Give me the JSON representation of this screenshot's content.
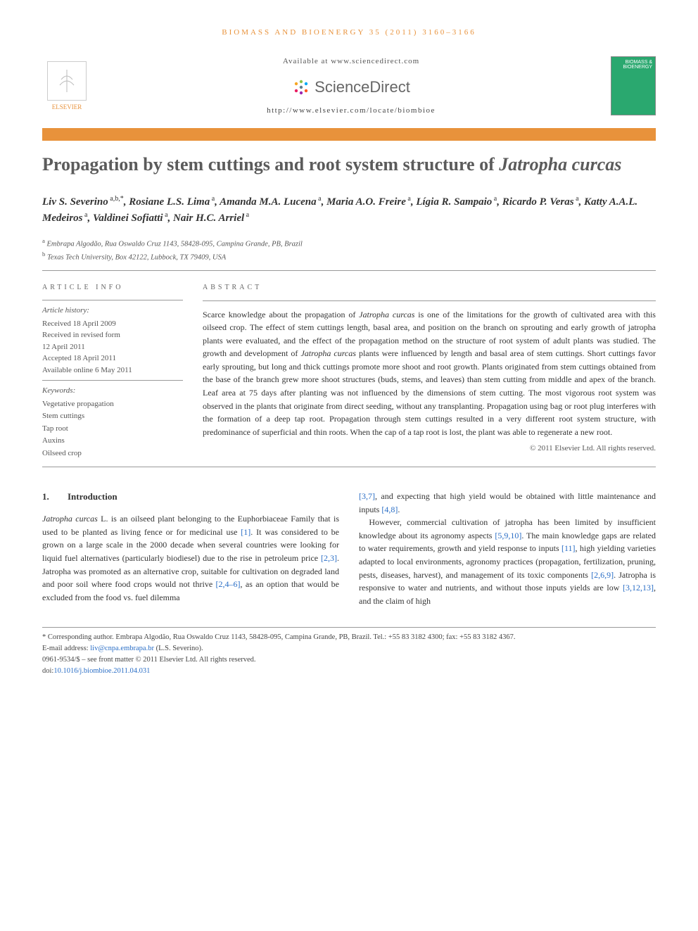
{
  "running_head": "BIOMASS AND BIOENERGY 35 (2011) 3160–3166",
  "header": {
    "available": "Available at www.sciencedirect.com",
    "sd_brand": "ScienceDirect",
    "journal_url": "http://www.elsevier.com/locate/biombioe",
    "elsevier": "ELSEVIER",
    "cover_text": "BIOMASS & BIOENERGY"
  },
  "title_pre": "Propagation by stem cuttings and root system structure of ",
  "title_species": "Jatropha curcas",
  "authors_html": "Liv S. Severino<sup> a,b,*</sup>, Rosiane L.S. Lima<sup> a</sup>, Amanda M.A. Lucena<sup> a</sup>, Maria A.O. Freire<sup> a</sup>, Lígia R. Sampaio<sup> a</sup>, Ricardo P. Veras<sup> a</sup>, Katty A.A.L. Medeiros<sup> a</sup>, Valdinei Sofiatti<sup> a</sup>, Nair H.C. Arriel<sup> a</sup>",
  "affiliations": {
    "a": "Embrapa Algodão, Rua Oswaldo Cruz 1143, 58428-095, Campina Grande, PB, Brazil",
    "b": "Texas Tech University, Box 42122, Lubbock, TX 79409, USA"
  },
  "article_info": {
    "heading": "ARTICLE INFO",
    "history_label": "Article history:",
    "received": "Received 18 April 2009",
    "revised_label": "Received in revised form",
    "revised_date": "12 April 2011",
    "accepted": "Accepted 18 April 2011",
    "online": "Available online 6 May 2011",
    "keywords_label": "Keywords:",
    "keywords": [
      "Vegetative propagation",
      "Stem cuttings",
      "Tap root",
      "Auxins",
      "Oilseed crop"
    ]
  },
  "abstract": {
    "heading": "ABSTRACT",
    "text": "Scarce knowledge about the propagation of Jatropha curcas is one of the limitations for the growth of cultivated area with this oilseed crop. The effect of stem cuttings length, basal area, and position on the branch on sprouting and early growth of jatropha plants were evaluated, and the effect of the propagation method on the structure of root system of adult plants was studied. The growth and development of Jatropha curcas plants were influenced by length and basal area of stem cuttings. Short cuttings favor early sprouting, but long and thick cuttings promote more shoot and root growth. Plants originated from stem cuttings obtained from the base of the branch grew more shoot structures (buds, stems, and leaves) than stem cutting from middle and apex of the branch. Leaf area at 75 days after planting was not influenced by the dimensions of stem cutting. The most vigorous root system was observed in the plants that originate from direct seeding, without any transplanting. Propagation using bag or root plug interferes with the formation of a deep tap root. Propagation through stem cuttings resulted in a very different root system structure, with predominance of superficial and thin roots. When the cap of a tap root is lost, the plant was able to regenerate a new root.",
    "copyright": "© 2011 Elsevier Ltd. All rights reserved."
  },
  "intro": {
    "num": "1.",
    "heading": "Introduction",
    "col1": "Jatropha curcas L. is an oilseed plant belonging to the Euphorbiaceae Family that is used to be planted as living fence or for medicinal use [1]. It was considered to be grown on a large scale in the 2000 decade when several countries were looking for liquid fuel alternatives (particularly biodiesel) due to the rise in petroleum price [2,3]. Jatropha was promoted as an alternative crop, suitable for cultivation on degraded land and poor soil where food crops would not thrive [2,4–6], as an option that would be excluded from the food vs. fuel dilemma",
    "col2": "[3,7], and expecting that high yield would be obtained with little maintenance and inputs [4,8].\nHowever, commercial cultivation of jatropha has been limited by insufficient knowledge about its agronomy aspects [5,9,10]. The main knowledge gaps are related to water requirements, growth and yield response to inputs [11], high yielding varieties adapted to local environments, agronomy practices (propagation, fertilization, pruning, pests, diseases, harvest), and management of its toxic components [2,6,9]. Jatropha is responsive to water and nutrients, and without those inputs yields are low [3,12,13], and the claim of high"
  },
  "footnotes": {
    "corr": "* Corresponding author. Embrapa Algodão, Rua Oswaldo Cruz 1143, 58428-095, Campina Grande, PB, Brazil. Tel.: +55 83 3182 4300; fax: +55 83 3182 4367.",
    "email_label": "E-mail address: ",
    "email": "liv@cnpa.embrapa.br",
    "email_tail": " (L.S. Severino).",
    "issn": "0961-9534/$ – see front matter © 2011 Elsevier Ltd. All rights reserved.",
    "doi_label": "doi:",
    "doi": "10.1016/j.biombioe.2011.04.031"
  },
  "colors": {
    "accent_orange": "#e8923b",
    "link_blue": "#2a6ec6",
    "cover_green": "#2aa86f",
    "text_gray": "#5b5b5b"
  }
}
